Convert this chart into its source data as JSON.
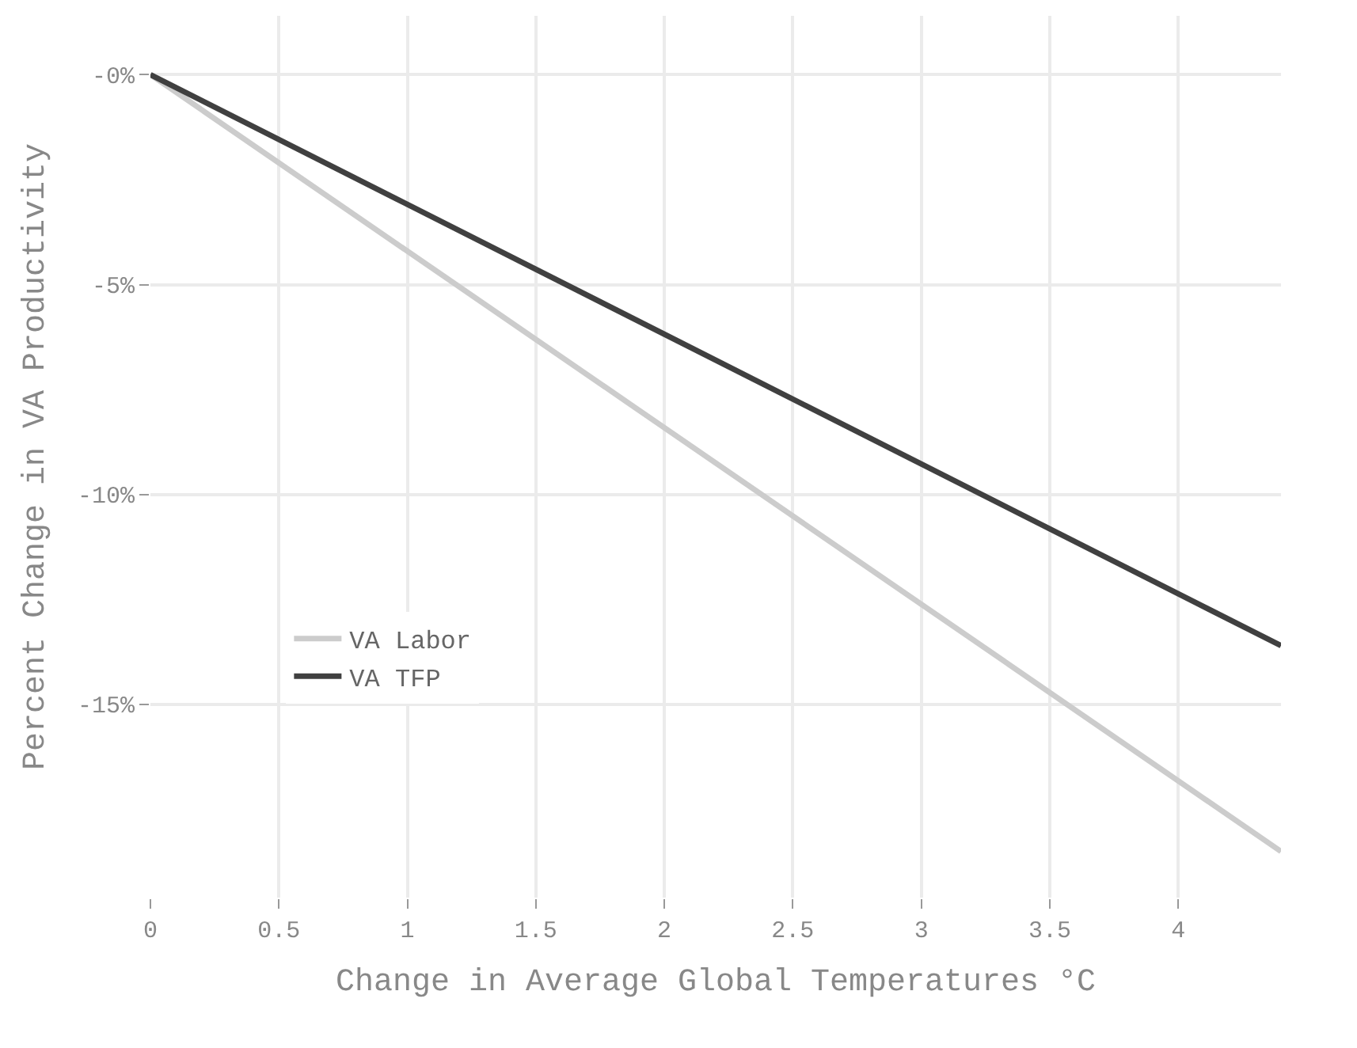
{
  "chart_data": {
    "type": "line",
    "xlabel": "Change in Average Global Temperatures °C",
    "ylabel": "Percent Change in VA Productivity",
    "x": [
      0,
      4.4
    ],
    "series": [
      {
        "name": "VA Labor",
        "color": "#cccccc",
        "values": [
          0,
          -18.5
        ]
      },
      {
        "name": "VA TFP",
        "color": "#404040",
        "values": [
          0,
          -13.6
        ]
      }
    ],
    "xlim": [
      0,
      4.4
    ],
    "xticks": [
      0,
      0.5,
      1,
      1.5,
      2,
      2.5,
      3,
      3.5,
      4
    ],
    "ylim": [
      -19.6,
      1.4
    ],
    "yticks": [
      {
        "value": 0,
        "label": "-0%"
      },
      {
        "value": -5,
        "label": "-5%"
      },
      {
        "value": -10,
        "label": "-10%"
      },
      {
        "value": -15,
        "label": "-15%"
      }
    ],
    "grid": true,
    "legend": "bottom left",
    "marker": "none",
    "line_style": "solid"
  }
}
